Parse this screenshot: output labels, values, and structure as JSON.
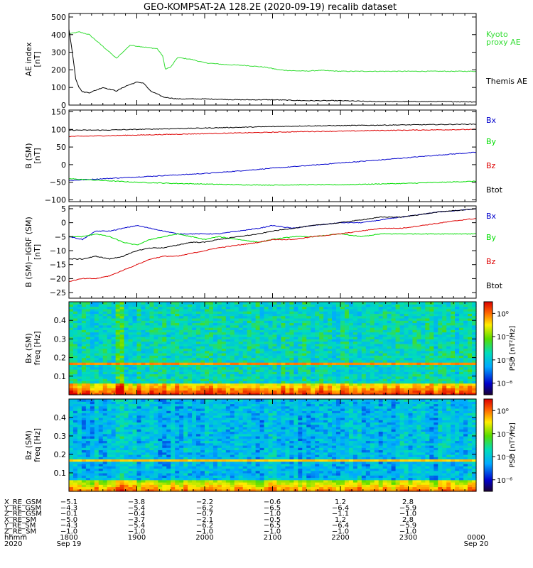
{
  "title": "GEO-KOMPSAT-2A 128.2E (2020-09-19) recalib dataset",
  "colors": {
    "bx": "#0000cc",
    "by": "#00dd00",
    "bz": "#dd0000",
    "btot": "#000000",
    "kyoto": "#33dd33",
    "themis": "#000000"
  },
  "chart_data": [
    {
      "type": "line",
      "id": "ae",
      "ylabel_top": "AE index",
      "ylabel_unit": "[nT]",
      "xlim": [
        0,
        6
      ],
      "ylim": [
        0,
        520
      ],
      "yticks": [
        0,
        100,
        200,
        300,
        400,
        500
      ],
      "ytick_labels": [
        "0",
        "100",
        "200",
        "300",
        "400",
        "500"
      ],
      "legend": [
        "Kyoto",
        "proxy AE",
        "Themis AE"
      ],
      "series": [
        {
          "name": "Kyoto proxy AE",
          "color_key": "kyoto",
          "x": [
            0,
            0.15,
            0.3,
            0.45,
            0.6,
            0.7,
            0.9,
            1.1,
            1.3,
            1.38,
            1.42,
            1.5,
            1.6,
            1.8,
            2.0,
            2.3,
            2.6,
            2.9,
            3.1,
            3.3,
            3.5,
            3.7,
            4.0,
            4.5,
            5.0,
            5.5,
            6.0
          ],
          "y": [
            405,
            415,
            400,
            350,
            300,
            265,
            340,
            330,
            320,
            280,
            205,
            215,
            270,
            260,
            240,
            230,
            225,
            215,
            200,
            195,
            193,
            197,
            192,
            192,
            192,
            192,
            192
          ]
        },
        {
          "name": "Themis AE",
          "color_key": "themis",
          "x": [
            0,
            0.05,
            0.1,
            0.15,
            0.2,
            0.3,
            0.5,
            0.7,
            0.85,
            1.0,
            1.1,
            1.2,
            1.4,
            1.6,
            2.0,
            2.5,
            3.0,
            3.5,
            4.0,
            4.5,
            5.0,
            5.5,
            6.0
          ],
          "y": [
            430,
            300,
            150,
            100,
            75,
            70,
            100,
            80,
            110,
            130,
            125,
            80,
            45,
            35,
            35,
            30,
            30,
            25,
            25,
            20,
            20,
            20,
            18
          ]
        }
      ]
    },
    {
      "type": "line",
      "id": "bsm",
      "ylabel_top": "B (SM)",
      "ylabel_unit": "[nT]",
      "xlim": [
        0,
        6
      ],
      "ylim": [
        -105,
        155
      ],
      "yticks": [
        -100,
        -50,
        0,
        50,
        100,
        150
      ],
      "ytick_labels": [
        "−100",
        "−50",
        "0",
        "50",
        "100",
        "150"
      ],
      "legend": [
        "Bx",
        "By",
        "Bz",
        "Btot"
      ],
      "series": [
        {
          "name": "Bx",
          "color_key": "bx",
          "x": [
            0,
            0.5,
            1.0,
            1.5,
            2.0,
            2.5,
            3.0,
            3.5,
            4.0,
            4.5,
            5.0,
            5.5,
            6.0
          ],
          "y": [
            -45,
            -40,
            -35,
            -30,
            -25,
            -18,
            -10,
            -3,
            5,
            12,
            20,
            28,
            35
          ]
        },
        {
          "name": "By",
          "color_key": "by",
          "x": [
            0,
            0.5,
            1.0,
            1.5,
            2.0,
            2.5,
            3.0,
            3.5,
            4.0,
            4.5,
            5.0,
            5.5,
            6.0
          ],
          "y": [
            -40,
            -45,
            -50,
            -53,
            -55,
            -57,
            -58,
            -57,
            -57,
            -55,
            -53,
            -50,
            -47
          ]
        },
        {
          "name": "Bz",
          "color_key": "bz",
          "x": [
            0,
            0.5,
            1.0,
            1.5,
            2.0,
            2.5,
            3.0,
            3.5,
            4.0,
            4.5,
            5.0,
            5.5,
            6.0
          ],
          "y": [
            80,
            82,
            84,
            86,
            88,
            90,
            92,
            94,
            95,
            97,
            98,
            99,
            100
          ]
        },
        {
          "name": "Btot",
          "color_key": "btot",
          "x": [
            0,
            0.5,
            1.0,
            1.5,
            2.0,
            2.5,
            3.0,
            3.5,
            4.0,
            4.5,
            5.0,
            5.5,
            6.0
          ],
          "y": [
            98,
            98,
            100,
            102,
            104,
            106,
            108,
            110,
            111,
            112,
            113,
            114,
            115
          ]
        }
      ]
    },
    {
      "type": "line",
      "id": "bdiff",
      "ylabel_top": "B (SM)−IGRF (SM)",
      "ylabel_unit": "[nT]",
      "xlim": [
        0,
        6
      ],
      "ylim": [
        -27,
        6
      ],
      "yticks": [
        -25,
        -20,
        -15,
        -10,
        -5,
        0,
        5
      ],
      "ytick_labels": [
        "−25",
        "−20",
        "−15",
        "−10",
        "−5",
        "0",
        "5"
      ],
      "legend": [
        "Bx",
        "By",
        "Bz",
        "Btot"
      ],
      "series": [
        {
          "name": "Bx",
          "color_key": "bx",
          "x": [
            0,
            0.2,
            0.4,
            0.6,
            0.8,
            1.0,
            1.2,
            1.4,
            1.6,
            1.8,
            2.0,
            2.2,
            2.5,
            2.8,
            3.0,
            3.3,
            3.6,
            4.0,
            4.3,
            4.6,
            4.9,
            5.2,
            5.5,
            5.8,
            6.0
          ],
          "y": [
            -5,
            -6,
            -3,
            -3,
            -2,
            -1,
            -2,
            -3,
            -4,
            -4,
            -4,
            -4,
            -3,
            -2,
            -1,
            -2,
            -1,
            0,
            0,
            1,
            2,
            3,
            4,
            4.5,
            5
          ]
        },
        {
          "name": "By",
          "color_key": "by",
          "x": [
            0,
            0.2,
            0.4,
            0.6,
            0.8,
            1.0,
            1.2,
            1.4,
            1.6,
            1.8,
            2.0,
            2.2,
            2.5,
            2.8,
            3.0,
            3.3,
            3.6,
            4.0,
            4.3,
            4.6,
            4.9,
            5.2,
            5.5,
            5.8,
            6.0
          ],
          "y": [
            -5,
            -5,
            -4,
            -5,
            -7,
            -8,
            -6,
            -5,
            -4,
            -5,
            -6,
            -5,
            -6,
            -7,
            -6,
            -5,
            -5,
            -4,
            -5,
            -4,
            -4,
            -4,
            -4,
            -4,
            -4
          ]
        },
        {
          "name": "Bz",
          "color_key": "bz",
          "x": [
            0,
            0.2,
            0.4,
            0.6,
            0.8,
            1.0,
            1.2,
            1.4,
            1.6,
            1.8,
            2.0,
            2.2,
            2.5,
            2.8,
            3.0,
            3.3,
            3.6,
            4.0,
            4.3,
            4.6,
            4.9,
            5.2,
            5.5,
            5.8,
            6.0
          ],
          "y": [
            -21,
            -20,
            -20,
            -19,
            -17,
            -15,
            -13,
            -12,
            -12,
            -11,
            -10,
            -9,
            -8,
            -7,
            -6,
            -6,
            -5,
            -4,
            -3,
            -2,
            -2,
            -1,
            0,
            1,
            1.5
          ]
        },
        {
          "name": "Btot",
          "color_key": "btot",
          "x": [
            0,
            0.2,
            0.4,
            0.6,
            0.8,
            1.0,
            1.2,
            1.4,
            1.6,
            1.8,
            2.0,
            2.2,
            2.5,
            2.8,
            3.0,
            3.3,
            3.6,
            4.0,
            4.3,
            4.6,
            4.9,
            5.2,
            5.5,
            5.8,
            6.0
          ],
          "y": [
            -13,
            -13,
            -12,
            -13,
            -12,
            -10,
            -9,
            -9,
            -8,
            -7,
            -7,
            -6,
            -5,
            -4,
            -3,
            -2,
            -1,
            0,
            1,
            2,
            2,
            3,
            4,
            4.5,
            5
          ]
        }
      ]
    },
    {
      "type": "heatmap",
      "id": "bxspec",
      "ylabel_top": "Bx (SM)",
      "ylabel_unit": "freq [Hz]",
      "xlim": [
        0,
        6
      ],
      "ylim": [
        0,
        0.5
      ],
      "yticks": [
        0.1,
        0.2,
        0.3,
        0.4
      ],
      "ytick_labels": [
        "0.1",
        "0.2",
        "0.3",
        "0.4"
      ],
      "colorbar_label": "PSD [nT²/Hz]",
      "colorbar_ticks": [
        "10⁰",
        "10⁻²",
        "10⁻⁴",
        "10⁻⁶"
      ],
      "colorbar_log_range": [
        -7,
        1
      ],
      "colorbar_tick_values": [
        0,
        -2,
        -4,
        -6
      ],
      "background_log_psd": -3.5,
      "low_freq_log_psd": -1.5,
      "line_freq_hz": 0.167,
      "line_log_psd": -0.5
    },
    {
      "type": "heatmap",
      "id": "bzspec",
      "ylabel_top": "Bz (SM)",
      "ylabel_unit": "freq [Hz]",
      "xlim": [
        0,
        6
      ],
      "ylim": [
        0,
        0.5
      ],
      "yticks": [
        0.1,
        0.2,
        0.3,
        0.4
      ],
      "ytick_labels": [
        "0.1",
        "0.2",
        "0.3",
        "0.4"
      ],
      "colorbar_label": "PSD [nT²/Hz]",
      "colorbar_ticks": [
        "10⁰",
        "10⁻²",
        "10⁻⁴",
        "10⁻⁶"
      ],
      "colorbar_log_range": [
        -7,
        1
      ],
      "colorbar_tick_values": [
        0,
        -2,
        -4,
        -6
      ],
      "background_log_psd": -4.2,
      "low_freq_log_psd": -2.2,
      "line_freq_hz": 0.167,
      "line_log_psd": -1.0
    }
  ],
  "ephemeris": {
    "rows": [
      {
        "label": "X_RE_GSM",
        "values": [
          "−5.1",
          "−3.8",
          "−2.2",
          "−0.6",
          "1.2",
          "2.8"
        ]
      },
      {
        "label": "Y_RE_GSM",
        "values": [
          "−4.3",
          "−5.4",
          "−6.2",
          "−6.5",
          "−6.4",
          "−5.9"
        ]
      },
      {
        "label": "Z_RE_GSM",
        "values": [
          "−0.1",
          "−0.4",
          "−0.7",
          "−1.0",
          "−1.1",
          "−1.0"
        ]
      },
      {
        "label": "X_RE_SM",
        "values": [
          "−5.0",
          "−3.7",
          "−2.1",
          "−0.5",
          "1.2",
          "2.8"
        ]
      },
      {
        "label": "Y_RE_SM",
        "values": [
          "−4.3",
          "−5.4",
          "−6.2",
          "−6.5",
          "−6.4",
          "−5.9"
        ]
      },
      {
        "label": "Z_RE_SM",
        "values": [
          "−1.0",
          "−1.0",
          "−1.0",
          "−1.0",
          "−1.0",
          "−1.0"
        ]
      }
    ],
    "hhmm_label": "hhmm",
    "hhmm": [
      "1800",
      "1900",
      "2000",
      "2100",
      "2200",
      "2300",
      "0000"
    ],
    "year_label": "2020",
    "date_start": "Sep 19",
    "date_end": "Sep 20"
  }
}
